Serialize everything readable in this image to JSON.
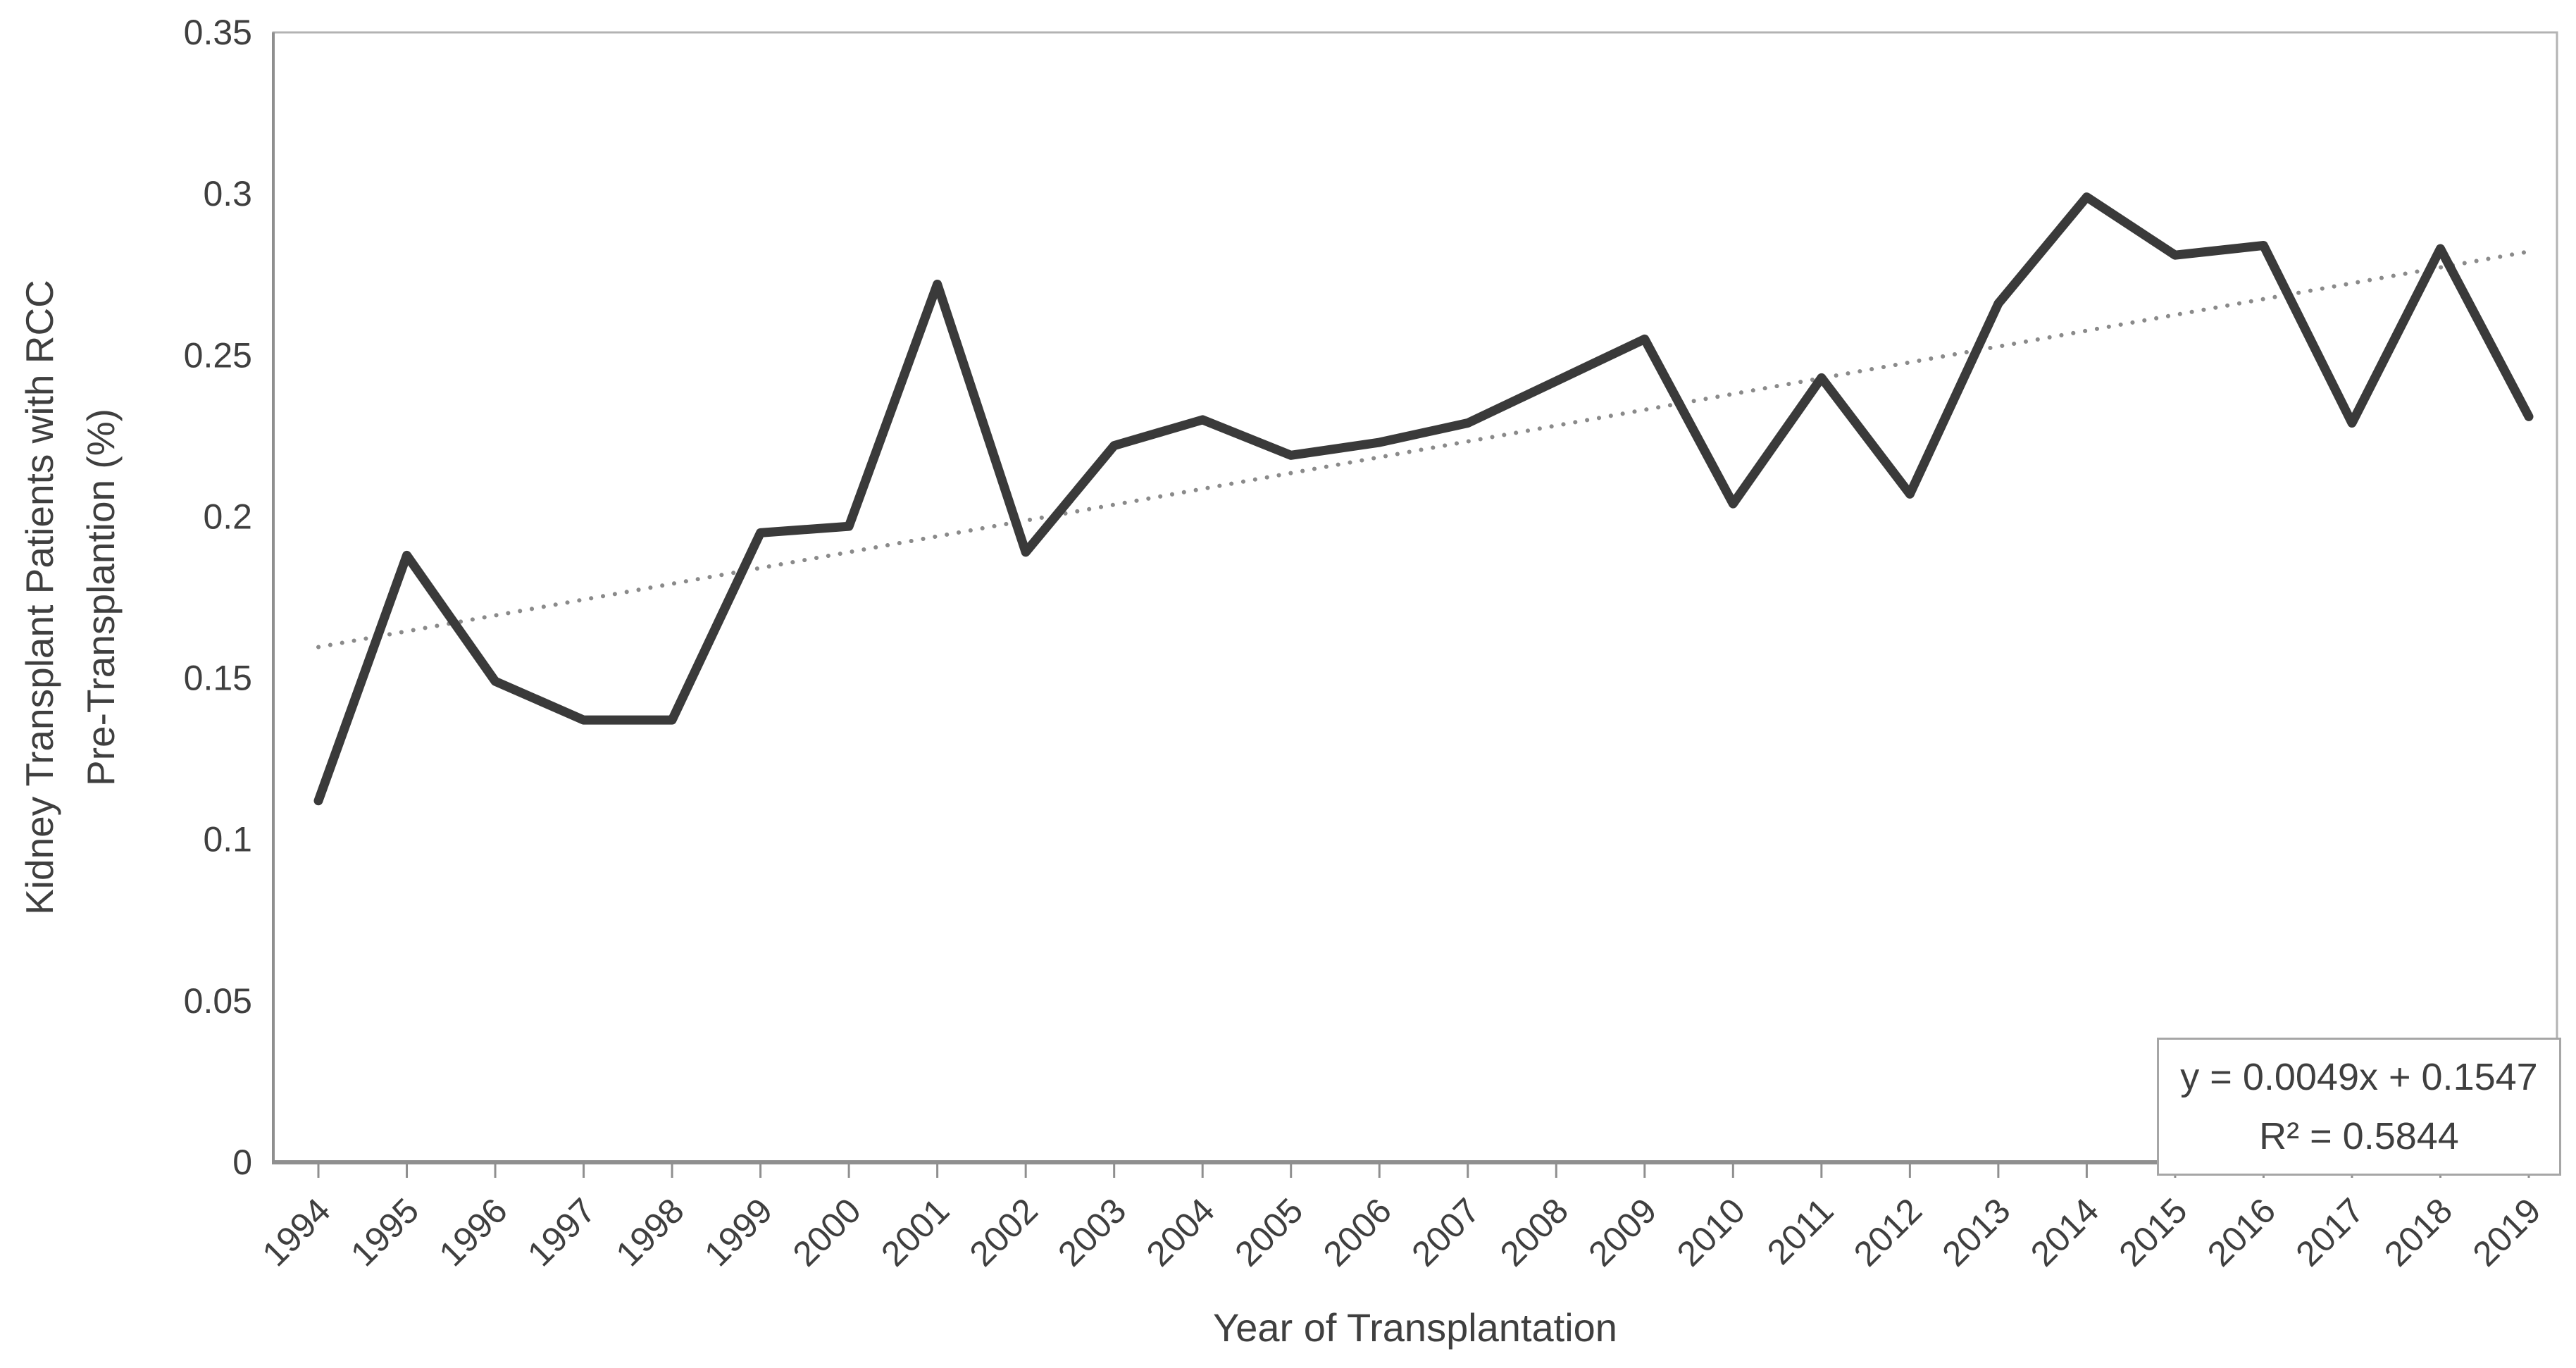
{
  "chart_data": {
    "type": "line",
    "title": "",
    "xlabel": "Year of Transplantation",
    "ylabel": "Kidney Transplant Patients with RCC Pre-Transplantion (%)",
    "ylabel_lines": [
      "Kidney Transplant Patients with RCC",
      "Pre-Transplantion (%)"
    ],
    "categories": [
      "1994",
      "1995",
      "1996",
      "1997",
      "1998",
      "1999",
      "2000",
      "2001",
      "2002",
      "2003",
      "2004",
      "2005",
      "2006",
      "2007",
      "2008",
      "2009",
      "2010",
      "2011",
      "2012",
      "2013",
      "2014",
      "2015",
      "2016",
      "2017",
      "2018",
      "2019"
    ],
    "series": [
      {
        "name": "Kidney transplant patients with RCC pre-transplantation (%)",
        "values": [
          0.112,
          0.188,
          0.149,
          0.137,
          0.137,
          0.195,
          0.197,
          0.272,
          0.189,
          0.222,
          0.23,
          0.219,
          0.223,
          0.229,
          0.242,
          0.255,
          0.204,
          0.243,
          0.207,
          0.266,
          0.299,
          0.281,
          0.284,
          0.229,
          0.283,
          0.231
        ]
      }
    ],
    "ylim": [
      0,
      0.35
    ],
    "yticks": [
      {
        "value": 0,
        "label": "0"
      },
      {
        "value": 0.05,
        "label": "0.05"
      },
      {
        "value": 0.1,
        "label": "0.1"
      },
      {
        "value": 0.15,
        "label": "0.15"
      },
      {
        "value": 0.2,
        "label": "0.2"
      },
      {
        "value": 0.25,
        "label": "0.25"
      },
      {
        "value": 0.3,
        "label": "0.3"
      },
      {
        "value": 0.35,
        "label": "0.35"
      }
    ],
    "grid": "off",
    "legend": "none",
    "trendline": {
      "type": "linear",
      "slope": 0.0049,
      "intercept": 0.1547,
      "r_squared": 0.5844,
      "equation_label": "y = 0.0049x + 0.1547",
      "r2_label": "R² = 0.5844",
      "style": "dotted"
    },
    "colors": {
      "series": "#3a3a3a",
      "trendline": "#8a8a8a",
      "axis": "#8f8f8f",
      "plot_border": "#b3b3b3",
      "text": "#3f3f3f",
      "background": "#ffffff"
    }
  }
}
